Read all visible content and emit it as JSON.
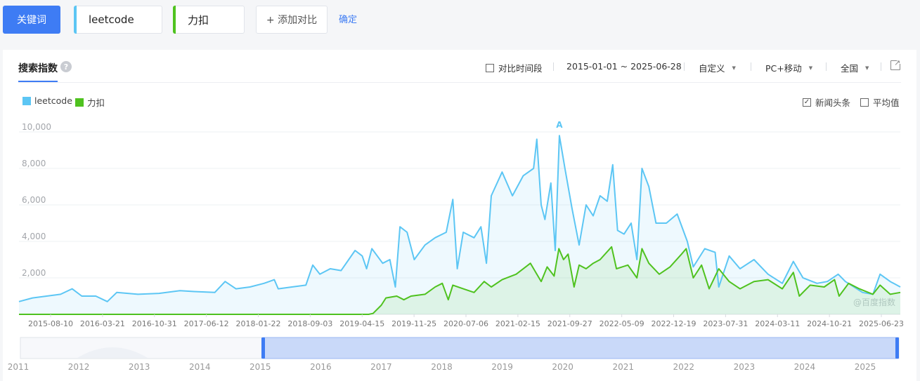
{
  "keyword_bar": {
    "keyword_button": "关键词",
    "terms": [
      "leetcode",
      "力扣"
    ],
    "add_compare": "+ 添加对比",
    "confirm": "确定"
  },
  "panel": {
    "title": "搜索指数",
    "help_icon": "question-icon",
    "compare_period": "对比时间段",
    "date_range": "2015-01-01 ~ 2025-06-28",
    "custom": "自定义",
    "device": "PC+移动",
    "region": "全国",
    "news_headlines": "新闻头条",
    "average": "平均值",
    "watermark": "@百度指数",
    "export_icon": "export-icon"
  },
  "colors": {
    "accent": "#3e7cf4",
    "leetcode": "#5cc6f4",
    "likou": "#4fc21f"
  },
  "chart_data": {
    "type": "line",
    "title": "",
    "xlabel": "",
    "ylabel": "",
    "ylim": [
      0,
      10000
    ],
    "y_ticks": [
      "10,000",
      "8,000",
      "6,000",
      "4,000",
      "2,000"
    ],
    "x_tick_labels": [
      "2015-08-10",
      "2016-03-21",
      "2016-10-31",
      "2017-06-12",
      "2018-01-22",
      "2018-09-03",
      "2019-04-15",
      "2019-11-25",
      "2020-07-06",
      "2021-02-15",
      "2021-09-27",
      "2022-05-09",
      "2022-12-19",
      "2023-07-31",
      "2024-03-11",
      "2024-10-21",
      "2025-06-23"
    ],
    "x_range": [
      "2015-01-01",
      "2025-06-28"
    ],
    "legend_position": "top-left",
    "annotation": {
      "label": "A",
      "date": "2021-06-07"
    },
    "overview_years": [
      "2011",
      "2012",
      "2013",
      "2014",
      "2015",
      "2016",
      "2017",
      "2018",
      "2019",
      "2020",
      "2021",
      "2022",
      "2023",
      "2024",
      "2025"
    ],
    "series": [
      {
        "name": "leetcode",
        "points": [
          [
            "2015-01-01",
            700
          ],
          [
            "2015-03-01",
            900
          ],
          [
            "2015-05-01",
            1000
          ],
          [
            "2015-07-01",
            1100
          ],
          [
            "2015-08-20",
            1400
          ],
          [
            "2015-10-01",
            1000
          ],
          [
            "2015-12-01",
            1000
          ],
          [
            "2016-01-20",
            700
          ],
          [
            "2016-03-01",
            1200
          ],
          [
            "2016-06-01",
            1100
          ],
          [
            "2016-09-01",
            1150
          ],
          [
            "2016-12-01",
            1300
          ],
          [
            "2017-02-01",
            1250
          ],
          [
            "2017-05-01",
            1200
          ],
          [
            "2017-06-15",
            1800
          ],
          [
            "2017-08-01",
            1400
          ],
          [
            "2017-10-01",
            1500
          ],
          [
            "2017-12-01",
            1700
          ],
          [
            "2018-01-15",
            1900
          ],
          [
            "2018-02-01",
            1400
          ],
          [
            "2018-04-01",
            1500
          ],
          [
            "2018-06-01",
            1600
          ],
          [
            "2018-07-01",
            2700
          ],
          [
            "2018-08-01",
            2200
          ],
          [
            "2018-09-15",
            2500
          ],
          [
            "2018-11-01",
            2400
          ],
          [
            "2019-01-01",
            3500
          ],
          [
            "2019-02-01",
            3200
          ],
          [
            "2019-02-20",
            2500
          ],
          [
            "2019-03-15",
            3600
          ],
          [
            "2019-05-01",
            2800
          ],
          [
            "2019-06-01",
            3000
          ],
          [
            "2019-06-25",
            1500
          ],
          [
            "2019-07-15",
            4800
          ],
          [
            "2019-08-15",
            4500
          ],
          [
            "2019-09-15",
            3000
          ],
          [
            "2019-11-01",
            3800
          ],
          [
            "2019-12-15",
            4200
          ],
          [
            "2020-02-01",
            4500
          ],
          [
            "2020-03-01",
            6300
          ],
          [
            "2020-03-20",
            2500
          ],
          [
            "2020-04-15",
            4500
          ],
          [
            "2020-06-01",
            4200
          ],
          [
            "2020-07-01",
            4800
          ],
          [
            "2020-07-25",
            2800
          ],
          [
            "2020-08-15",
            6500
          ],
          [
            "2020-10-01",
            7800
          ],
          [
            "2020-11-15",
            6500
          ],
          [
            "2021-01-01",
            7600
          ],
          [
            "2021-02-15",
            8000
          ],
          [
            "2021-03-01",
            9600
          ],
          [
            "2021-03-20",
            6000
          ],
          [
            "2021-04-05",
            5200
          ],
          [
            "2021-05-01",
            7200
          ],
          [
            "2021-05-20",
            3500
          ],
          [
            "2021-06-07",
            9800
          ],
          [
            "2021-07-01",
            8000
          ],
          [
            "2021-08-01",
            5800
          ],
          [
            "2021-09-01",
            3800
          ],
          [
            "2021-10-01",
            6000
          ],
          [
            "2021-11-01",
            5400
          ],
          [
            "2021-12-01",
            6500
          ],
          [
            "2022-01-01",
            6200
          ],
          [
            "2022-01-25",
            8200
          ],
          [
            "2022-02-15",
            4600
          ],
          [
            "2022-03-15",
            4400
          ],
          [
            "2022-04-15",
            5000
          ],
          [
            "2022-05-10",
            3000
          ],
          [
            "2022-06-01",
            8000
          ],
          [
            "2022-07-01",
            7000
          ],
          [
            "2022-08-01",
            5000
          ],
          [
            "2022-09-15",
            5000
          ],
          [
            "2022-11-01",
            5500
          ],
          [
            "2022-12-15",
            4000
          ],
          [
            "2023-01-10",
            2600
          ],
          [
            "2023-03-01",
            3600
          ],
          [
            "2023-04-15",
            3400
          ],
          [
            "2023-05-01",
            1500
          ],
          [
            "2023-06-15",
            3200
          ],
          [
            "2023-08-01",
            2500
          ],
          [
            "2023-10-01",
            3000
          ],
          [
            "2023-12-01",
            2200
          ],
          [
            "2024-02-01",
            1700
          ],
          [
            "2024-03-20",
            2900
          ],
          [
            "2024-05-01",
            2000
          ],
          [
            "2024-07-01",
            1700
          ],
          [
            "2024-08-15",
            1800
          ],
          [
            "2024-10-01",
            2200
          ],
          [
            "2024-11-01",
            1800
          ],
          [
            "2025-01-15",
            1200
          ],
          [
            "2025-03-01",
            1100
          ],
          [
            "2025-04-01",
            2200
          ],
          [
            "2025-05-15",
            1800
          ],
          [
            "2025-06-28",
            1500
          ]
        ]
      },
      {
        "name": "力扣",
        "points": [
          [
            "2015-01-01",
            0
          ],
          [
            "2018-06-01",
            0
          ],
          [
            "2019-03-01",
            0
          ],
          [
            "2019-03-20",
            50
          ],
          [
            "2019-04-25",
            500
          ],
          [
            "2019-05-15",
            900
          ],
          [
            "2019-07-01",
            1000
          ],
          [
            "2019-08-01",
            800
          ],
          [
            "2019-09-01",
            1000
          ],
          [
            "2019-11-01",
            1100
          ],
          [
            "2019-12-15",
            1500
          ],
          [
            "2020-01-15",
            1700
          ],
          [
            "2020-02-10",
            800
          ],
          [
            "2020-03-01",
            1600
          ],
          [
            "2020-04-15",
            1400
          ],
          [
            "2020-06-01",
            1200
          ],
          [
            "2020-07-15",
            1800
          ],
          [
            "2020-08-15",
            1500
          ],
          [
            "2020-10-01",
            1900
          ],
          [
            "2020-12-01",
            2200
          ],
          [
            "2021-02-01",
            2800
          ],
          [
            "2021-03-01",
            2200
          ],
          [
            "2021-03-20",
            1800
          ],
          [
            "2021-04-15",
            2600
          ],
          [
            "2021-05-15",
            2100
          ],
          [
            "2021-06-05",
            3600
          ],
          [
            "2021-06-25",
            3000
          ],
          [
            "2021-07-15",
            3300
          ],
          [
            "2021-08-10",
            1500
          ],
          [
            "2021-09-01",
            2700
          ],
          [
            "2021-10-01",
            2500
          ],
          [
            "2021-11-01",
            2800
          ],
          [
            "2021-12-01",
            3000
          ],
          [
            "2022-01-20",
            3700
          ],
          [
            "2022-02-10",
            2500
          ],
          [
            "2022-04-01",
            2700
          ],
          [
            "2022-05-10",
            2000
          ],
          [
            "2022-06-01",
            3600
          ],
          [
            "2022-07-01",
            2800
          ],
          [
            "2022-08-15",
            2200
          ],
          [
            "2022-10-01",
            2600
          ],
          [
            "2022-11-20",
            3300
          ],
          [
            "2022-12-10",
            3600
          ],
          [
            "2023-01-10",
            2000
          ],
          [
            "2023-02-15",
            2700
          ],
          [
            "2023-03-20",
            1400
          ],
          [
            "2023-05-01",
            2500
          ],
          [
            "2023-06-15",
            1800
          ],
          [
            "2023-08-01",
            1400
          ],
          [
            "2023-10-01",
            1800
          ],
          [
            "2023-12-01",
            1900
          ],
          [
            "2024-02-01",
            1400
          ],
          [
            "2024-03-20",
            2300
          ],
          [
            "2024-04-15",
            1000
          ],
          [
            "2024-06-01",
            1600
          ],
          [
            "2024-08-01",
            1500
          ],
          [
            "2024-09-15",
            1900
          ],
          [
            "2024-10-05",
            1000
          ],
          [
            "2024-11-15",
            1700
          ],
          [
            "2025-01-01",
            1400
          ],
          [
            "2025-03-01",
            1100
          ],
          [
            "2025-04-01",
            1600
          ],
          [
            "2025-05-15",
            1100
          ],
          [
            "2025-06-28",
            1200
          ]
        ]
      }
    ]
  }
}
